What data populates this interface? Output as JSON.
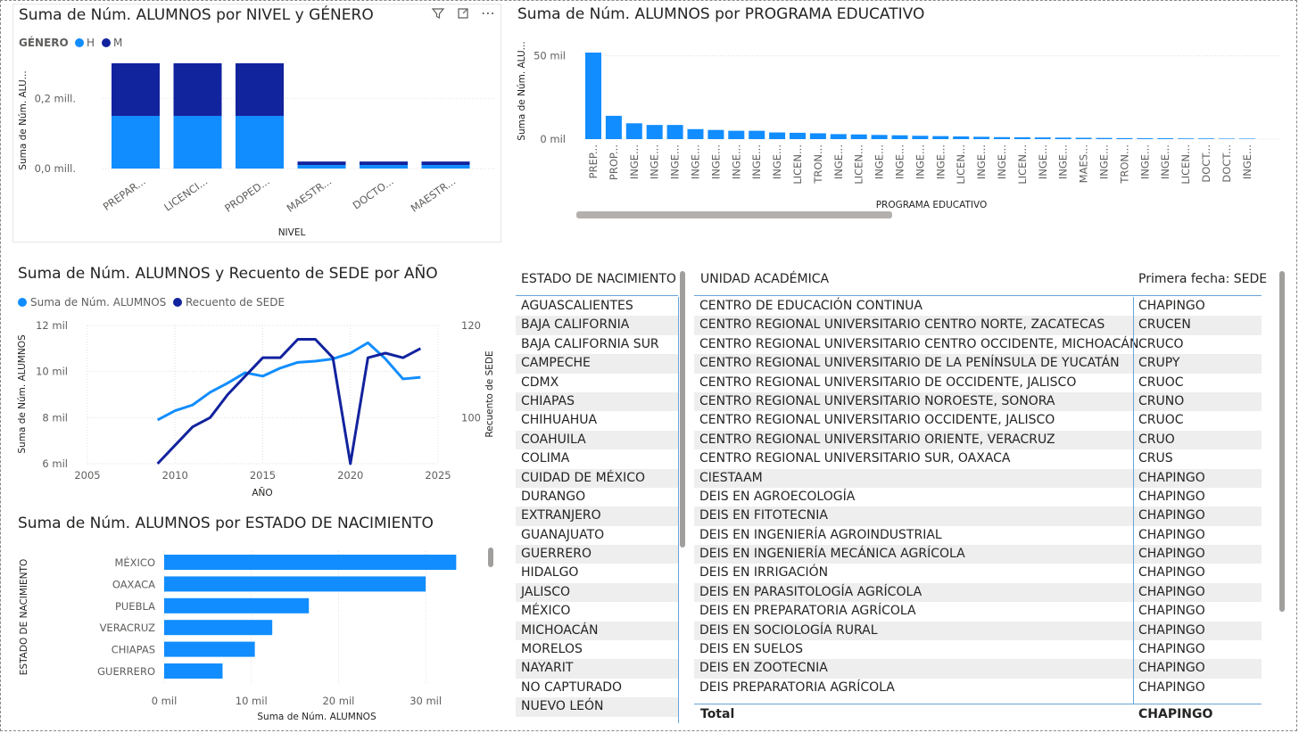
{
  "colors": {
    "light": "#118dff",
    "dark": "#12239e",
    "grid": "#e1dfdd"
  },
  "v1": {
    "title": "Suma de Núm. ALUMNOS por NIVEL y GÉNERO",
    "legend_title": "GÉNERO",
    "ylabel": "Suma de Núm. ALU...",
    "xlabel": "NIVEL",
    "yticks": [
      "0,2 mill.",
      "0,0 mill."
    ],
    "icons": [
      "filter-icon",
      "focus-icon",
      "more-icon"
    ]
  },
  "v2": {
    "title": "Suma de Núm. ALUMNOS por PROGRAMA EDUCATIVO",
    "ylabel": "Suma de Núm. ALU...",
    "xlabel": "PROGRAMA EDUCATIVO",
    "yticks": [
      "50 mil",
      "0 mil"
    ]
  },
  "v3": {
    "title": "Suma de Núm. ALUMNOS y Recuento de SEDE por AÑO",
    "ylabel_left": "Suma de Núm. ALUMNOS",
    "ylabel_right": "Recuento de SEDE",
    "xlabel": "AÑO"
  },
  "v4": {
    "title": "Suma de Núm. ALUMNOS por ESTADO DE NACIMIENTO",
    "ylabel": "ESTADO DE NACIMIENTO",
    "xlabel": "Suma de Núm. ALUMNOS"
  },
  "table1": {
    "header": "ESTADO DE NACIMIENTO",
    "rows": [
      "AGUASCALIENTES",
      "BAJA CALIFORNIA",
      "BAJA CALIFORNIA SUR",
      "CAMPECHE",
      "CDMX",
      "CHIAPAS",
      "CHIHUAHUA",
      "COAHUILA",
      "COLIMA",
      "CUIDAD DE MÉXICO",
      "DURANGO",
      "EXTRANJERO",
      "GUANAJUATO",
      "GUERRERO",
      "HIDALGO",
      "JALISCO",
      "MÉXICO",
      "MICHOACÁN",
      "MORELOS",
      "NAYARIT",
      "NO CAPTURADO",
      "NUEVO LEÓN"
    ]
  },
  "table2": {
    "header_unit": "UNIDAD ACADÉMICA",
    "header_sede": "Primera fecha: SEDE",
    "rows": [
      [
        "CENTRO DE EDUCACIÓN CONTINUA",
        "CHAPINGO"
      ],
      [
        "CENTRO REGIONAL UNIVERSITARIO CENTRO NORTE, ZACATECAS",
        "CRUCEN"
      ],
      [
        "CENTRO REGIONAL UNIVERSITARIO CENTRO OCCIDENTE, MICHOACÁN",
        "CRUCO"
      ],
      [
        "CENTRO REGIONAL UNIVERSITARIO DE LA PENÍNSULA DE YUCATÁN",
        "CRUPY"
      ],
      [
        "CENTRO REGIONAL UNIVERSITARIO DE OCCIDENTE, JALISCO",
        "CRUOC"
      ],
      [
        "CENTRO REGIONAL UNIVERSITARIO NOROESTE, SONORA",
        "CRUNO"
      ],
      [
        "CENTRO REGIONAL UNIVERSITARIO OCCIDENTE, JALISCO",
        "CRUOC"
      ],
      [
        "CENTRO REGIONAL UNIVERSITARIO ORIENTE, VERACRUZ",
        "CRUO"
      ],
      [
        "CENTRO REGIONAL UNIVERSITARIO SUR, OAXACA",
        "CRUS"
      ],
      [
        "CIESTAAM",
        "CHAPINGO"
      ],
      [
        "DEIS EN AGROECOLOGÍA",
        "CHAPINGO"
      ],
      [
        "DEIS EN FITOTECNIA",
        "CHAPINGO"
      ],
      [
        "DEIS EN INGENIERÍA AGROINDUSTRIAL",
        "CHAPINGO"
      ],
      [
        "DEIS EN INGENIERÍA MECÁNICA AGRÍCOLA",
        "CHAPINGO"
      ],
      [
        "DEIS EN IRRIGACIÓN",
        "CHAPINGO"
      ],
      [
        "DEIS EN PARASITOLOGÍA AGRÍCOLA",
        "CHAPINGO"
      ],
      [
        "DEIS EN PREPARATORIA AGRÍCOLA",
        "CHAPINGO"
      ],
      [
        "DEIS EN SOCIOLOGÍA RURAL",
        "CHAPINGO"
      ],
      [
        "DEIS EN SUELOS",
        "CHAPINGO"
      ],
      [
        "DEIS EN ZOOTECNIA",
        "CHAPINGO"
      ],
      [
        "DEIS PREPARATORIA AGRÍCOLA",
        "CHAPINGO"
      ]
    ],
    "total_label": "Total",
    "total_value": "CHAPINGO"
  },
  "chart_data": [
    {
      "type": "bar",
      "stacked": true,
      "title": "Suma de Núm. ALUMNOS por NIVEL y GÉNERO",
      "xlabel": "NIVEL",
      "ylabel": "Suma de Núm. ALU...",
      "categories": [
        "PREPAR...",
        "LICENCI...",
        "PROPED...",
        "MAESTR...",
        "DOCTO...",
        "MAESTR..."
      ],
      "series": [
        {
          "name": "H",
          "values": [
            0.15,
            0.15,
            0.15,
            0.01,
            0.01,
            0.01
          ]
        },
        {
          "name": "M",
          "values": [
            0.15,
            0.15,
            0.15,
            0.01,
            0.01,
            0.01
          ]
        }
      ],
      "ylim": [
        0,
        0.31
      ],
      "yticks": [
        0,
        0.2
      ],
      "legend": "top-left"
    },
    {
      "type": "bar",
      "title": "Suma de Núm. ALUMNOS por PROGRAMA EDUCATIVO",
      "xlabel": "PROGRAMA EDUCATIVO",
      "ylabel": "Suma de Núm. ALU...",
      "categories": [
        "PREP...",
        "PROP...",
        "INGE...",
        "INGE...",
        "INGE...",
        "INGE...",
        "INGE...",
        "INGE...",
        "INGE...",
        "INGE...",
        "LICEN...",
        "TRON...",
        "INGE...",
        "LICEN...",
        "INGE...",
        "INGE...",
        "INGE...",
        "INGE...",
        "LICEN...",
        "INGE...",
        "INGE...",
        "LICEN...",
        "INGE...",
        "INGE...",
        "MAES...",
        "INGE...",
        "TRON...",
        "INGE...",
        "INGE...",
        "LICEN...",
        "DOCT...",
        "DOCT...",
        "INGE..."
      ],
      "values": [
        52,
        14,
        9.5,
        8.5,
        8.5,
        6,
        5.5,
        5,
        5,
        4,
        3.8,
        3.5,
        3,
        2.8,
        2.5,
        2.3,
        2,
        1.8,
        1.6,
        1.4,
        1.2,
        1.1,
        1,
        0.9,
        0.8,
        0.7,
        0.6,
        0.5,
        0.5,
        0.4,
        0.4,
        0.3,
        0.3
      ],
      "ylim": [
        0,
        60
      ],
      "yticks": [
        0,
        50
      ]
    },
    {
      "type": "line",
      "title": "Suma de Núm. ALUMNOS y Recuento de SEDE por AÑO",
      "xlabel": "AÑO",
      "x": [
        2009,
        2010,
        2011,
        2012,
        2013,
        2014,
        2015,
        2016,
        2017,
        2018,
        2019,
        2020,
        2021,
        2022,
        2023,
        2024
      ],
      "series": [
        {
          "name": "Suma de Núm. ALUMNOS",
          "axis": "left",
          "values": [
            7900,
            8300,
            8550,
            9100,
            9500,
            9950,
            9800,
            10150,
            10400,
            10450,
            10550,
            10800,
            11250,
            10550,
            9680,
            9750
          ]
        },
        {
          "name": "Recuento de SEDE",
          "axis": "right",
          "values": [
            90,
            94,
            98,
            100,
            105,
            109,
            113,
            113,
            117,
            117,
            113,
            90,
            113,
            114,
            113,
            115
          ]
        }
      ],
      "xlim": [
        2005,
        2025
      ],
      "xticks": [
        2005,
        2010,
        2015,
        2020,
        2025
      ],
      "ylim_left": [
        6000,
        12000
      ],
      "yticks_left": [
        6000,
        8000,
        10000,
        12000
      ],
      "ytick_labels_left": [
        "6 mil",
        "8 mil",
        "10 mil",
        "12 mil"
      ],
      "ylim_right": [
        90,
        120
      ],
      "yticks_right": [
        100,
        120
      ],
      "legend": "top-left"
    },
    {
      "type": "bar",
      "orientation": "horizontal",
      "title": "Suma de Núm. ALUMNOS por ESTADO DE NACIMIENTO",
      "xlabel": "Suma de Núm. ALUMNOS",
      "ylabel": "ESTADO DE NACIMIENTO",
      "categories": [
        "MÉXICO",
        "OAXACA",
        "PUEBLA",
        "VERACRUZ",
        "CHIAPAS",
        "GUERRERO"
      ],
      "values": [
        33500,
        30000,
        16600,
        12400,
        10400,
        6700
      ],
      "xlim": [
        0,
        35000
      ],
      "xticks": [
        0,
        10000,
        20000,
        30000
      ],
      "xtick_labels": [
        "0 mil",
        "10 mil",
        "20 mil",
        "30 mil"
      ]
    }
  ]
}
